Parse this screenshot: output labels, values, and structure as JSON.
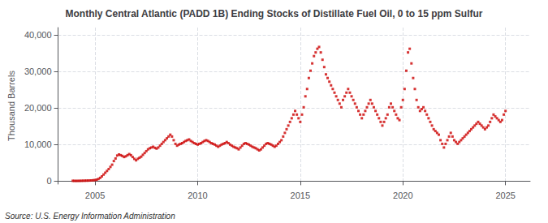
{
  "chart_data": {
    "type": "scatter",
    "title": "Monthly Central Atlantic (PADD 1B) Ending Stocks of Distillate Fuel Oil, 0 to 15 ppm Sulfur",
    "ylabel": "Thousand Barrels",
    "annotations": [
      "Source: U.S. Energy Information Administration"
    ],
    "color": "#cc0000",
    "marker": "square",
    "grid": true,
    "xlim": [
      2003.2,
      2026.2
    ],
    "xticks": [
      2005,
      2010,
      2015,
      2020,
      2025
    ],
    "ylim": [
      -800,
      42000
    ],
    "yticks": [
      0,
      {
        "value": 10000,
        "label": "10,000"
      },
      {
        "value": 20000,
        "label": "20,000"
      },
      {
        "value": 30000,
        "label": "30,000"
      },
      {
        "value": 40000,
        "label": "40,000"
      }
    ],
    "x": [
      2003.917,
      2004.0,
      2004.083,
      2004.167,
      2004.25,
      2004.333,
      2004.417,
      2004.5,
      2004.583,
      2004.667,
      2004.75,
      2004.833,
      2004.917,
      2005.0,
      2005.083,
      2005.167,
      2005.25,
      2005.333,
      2005.417,
      2005.5,
      2005.583,
      2005.667,
      2005.75,
      2005.833,
      2005.917,
      2006.0,
      2006.083,
      2006.167,
      2006.25,
      2006.333,
      2006.417,
      2006.5,
      2006.583,
      2006.667,
      2006.75,
      2006.833,
      2006.917,
      2007.0,
      2007.083,
      2007.167,
      2007.25,
      2007.333,
      2007.417,
      2007.5,
      2007.583,
      2007.667,
      2007.75,
      2007.833,
      2007.917,
      2008.0,
      2008.083,
      2008.167,
      2008.25,
      2008.333,
      2008.417,
      2008.5,
      2008.583,
      2008.667,
      2008.75,
      2008.833,
      2008.917,
      2009.0,
      2009.083,
      2009.167,
      2009.25,
      2009.333,
      2009.417,
      2009.5,
      2009.583,
      2009.667,
      2009.75,
      2009.833,
      2009.917,
      2010.0,
      2010.083,
      2010.167,
      2010.25,
      2010.333,
      2010.417,
      2010.5,
      2010.583,
      2010.667,
      2010.75,
      2010.833,
      2010.917,
      2011.0,
      2011.083,
      2011.167,
      2011.25,
      2011.333,
      2011.417,
      2011.5,
      2011.583,
      2011.667,
      2011.75,
      2011.833,
      2011.917,
      2012.0,
      2012.083,
      2012.167,
      2012.25,
      2012.333,
      2012.417,
      2012.5,
      2012.583,
      2012.667,
      2012.75,
      2012.833,
      2012.917,
      2013.0,
      2013.083,
      2013.167,
      2013.25,
      2013.333,
      2013.417,
      2013.5,
      2013.583,
      2013.667,
      2013.75,
      2013.833,
      2013.917,
      2014.0,
      2014.083,
      2014.167,
      2014.25,
      2014.333,
      2014.417,
      2014.5,
      2014.583,
      2014.667,
      2014.75,
      2014.833,
      2014.917,
      2015.0,
      2015.083,
      2015.167,
      2015.25,
      2015.333,
      2015.417,
      2015.5,
      2015.583,
      2015.667,
      2015.75,
      2015.833,
      2015.917,
      2016.0,
      2016.083,
      2016.167,
      2016.25,
      2016.333,
      2016.417,
      2016.5,
      2016.583,
      2016.667,
      2016.75,
      2016.833,
      2016.917,
      2017.0,
      2017.083,
      2017.167,
      2017.25,
      2017.333,
      2017.417,
      2017.5,
      2017.583,
      2017.667,
      2017.75,
      2017.833,
      2017.917,
      2018.0,
      2018.083,
      2018.167,
      2018.25,
      2018.333,
      2018.417,
      2018.5,
      2018.583,
      2018.667,
      2018.75,
      2018.833,
      2018.917,
      2019.0,
      2019.083,
      2019.167,
      2019.25,
      2019.333,
      2019.417,
      2019.5,
      2019.583,
      2019.667,
      2019.75,
      2019.833,
      2019.917,
      2020.0,
      2020.083,
      2020.167,
      2020.25,
      2020.333,
      2020.417,
      2020.5,
      2020.583,
      2020.667,
      2020.75,
      2020.833,
      2020.917,
      2021.0,
      2021.083,
      2021.167,
      2021.25,
      2021.333,
      2021.417,
      2021.5,
      2021.583,
      2021.667,
      2021.75,
      2021.833,
      2021.917,
      2022.0,
      2022.083,
      2022.167,
      2022.25,
      2022.333,
      2022.417,
      2022.5,
      2022.583,
      2022.667,
      2022.75,
      2022.833,
      2022.917,
      2023.0,
      2023.083,
      2023.167,
      2023.25,
      2023.333,
      2023.417,
      2023.5,
      2023.583,
      2023.667,
      2023.75,
      2023.833,
      2023.917,
      2024.0,
      2024.083,
      2024.167,
      2024.25,
      2024.333,
      2024.417,
      2024.5,
      2024.583,
      2024.667,
      2024.75,
      2024.833,
      2024.917,
      2025.0
    ],
    "values": [
      100,
      80,
      70,
      80,
      90,
      100,
      120,
      130,
      150,
      160,
      180,
      200,
      250,
      300,
      400,
      600,
      900,
      1300,
      1800,
      2300,
      2800,
      3300,
      3900,
      4500,
      5500,
      6200,
      7000,
      7300,
      7100,
      6900,
      6600,
      6800,
      7100,
      7400,
      7100,
      6600,
      6100,
      5700,
      6100,
      6400,
      6700,
      7200,
      7700,
      8200,
      8700,
      9000,
      9200,
      9400,
      9100,
      8900,
      9200,
      9700,
      10200,
      10700,
      11200,
      11700,
      12200,
      12700,
      12200,
      11200,
      10200,
      9700,
      10000,
      10200,
      10400,
      10700,
      11000,
      11200,
      11400,
      11000,
      10700,
      10400,
      10200,
      10000,
      10200,
      10400,
      10700,
      11000,
      11200,
      11000,
      10700,
      10400,
      10200,
      10000,
      9700,
      9400,
      9700,
      10000,
      10200,
      10400,
      10700,
      10400,
      10000,
      9700,
      9400,
      9200,
      9000,
      8700,
      9200,
      9700,
      10200,
      10400,
      10200,
      10000,
      9700,
      9400,
      9200,
      9000,
      8700,
      8400,
      8700,
      9200,
      9700,
      10200,
      10400,
      10200,
      10000,
      9700,
      9400,
      9700,
      10200,
      10700,
      11200,
      12200,
      13200,
      14200,
      15200,
      16200,
      17200,
      18200,
      19200,
      18200,
      17200,
      16200,
      18200,
      20200,
      23200,
      25200,
      28200,
      30200,
      32200,
      34200,
      35200,
      36200,
      36700,
      35200,
      33200,
      31200,
      29200,
      28200,
      27200,
      26200,
      25200,
      24200,
      23200,
      22200,
      21200,
      20200,
      22200,
      23200,
      24200,
      25200,
      24200,
      23200,
      22200,
      21200,
      20200,
      19200,
      18200,
      17200,
      18200,
      19200,
      20200,
      21200,
      22200,
      21200,
      20200,
      19200,
      18200,
      17200,
      16200,
      15200,
      16200,
      17200,
      18200,
      20200,
      21200,
      20200,
      19200,
      18200,
      17200,
      16700,
      20200,
      22200,
      25200,
      30200,
      35200,
      36200,
      32200,
      28200,
      25200,
      22200,
      20200,
      19200,
      19700,
      20200,
      19200,
      18200,
      17200,
      16200,
      15200,
      14200,
      13700,
      13200,
      12700,
      11200,
      10200,
      9200,
      10200,
      11200,
      12200,
      13200,
      12200,
      11200,
      10700,
      10200,
      10700,
      11200,
      11700,
      12200,
      12700,
      13200,
      13700,
      14200,
      14700,
      15200,
      15700,
      16200,
      15700,
      15200,
      14700,
      14200,
      14700,
      15200,
      16200,
      17200,
      18200,
      17700,
      17200,
      16700,
      16200,
      16700,
      18200,
      19200
    ]
  }
}
